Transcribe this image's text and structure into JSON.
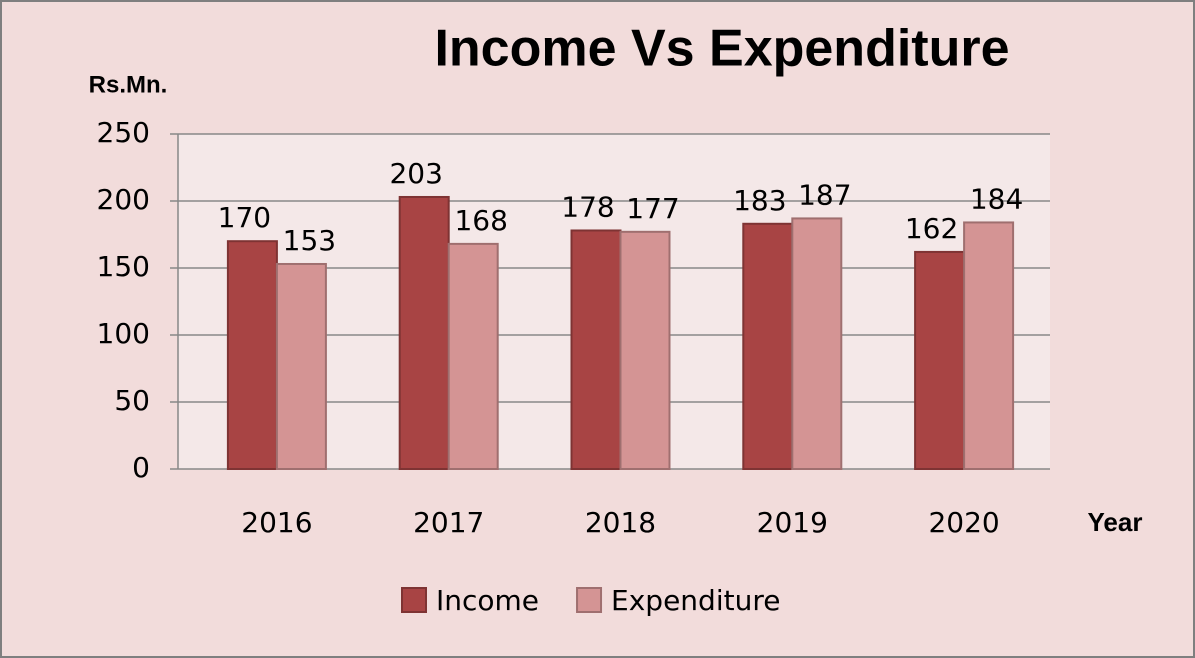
{
  "chart_data": {
    "type": "bar",
    "title": "Income Vs Expenditure",
    "y_axis_label": "Rs.Mn.",
    "x_axis_label": "Year",
    "categories": [
      "2016",
      "2017",
      "2018",
      "2019",
      "2020"
    ],
    "series": [
      {
        "name": "Income",
        "color": "#a84444",
        "values": [
          170,
          203,
          178,
          183,
          162
        ]
      },
      {
        "name": "Expenditure",
        "color": "#d49494",
        "values": [
          153,
          168,
          177,
          187,
          184
        ]
      }
    ],
    "ylim": [
      0,
      250
    ],
    "yticks": [
      0,
      50,
      100,
      150,
      200,
      250
    ],
    "grid": true,
    "legend": "bottom"
  }
}
